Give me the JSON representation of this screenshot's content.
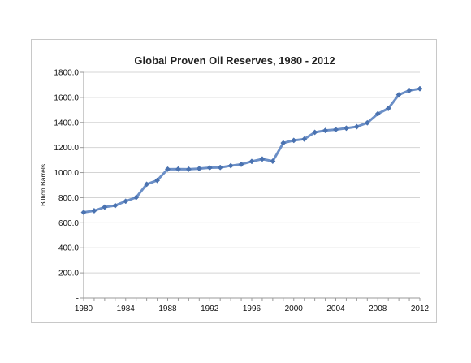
{
  "chart_data": {
    "type": "line",
    "title": "Global Proven Oil Reserves, 1980 - 2012",
    "xlabel": "",
    "ylabel": "Billion Barrels",
    "x": [
      1980,
      1981,
      1982,
      1983,
      1984,
      1985,
      1986,
      1987,
      1988,
      1989,
      1990,
      1991,
      1992,
      1993,
      1994,
      1995,
      1996,
      1997,
      1998,
      1999,
      2000,
      2001,
      2002,
      2003,
      2004,
      2005,
      2006,
      2007,
      2008,
      2009,
      2010,
      2011,
      2012
    ],
    "series": [
      {
        "values": [
          683,
          696,
          725,
          737,
          772,
          802,
          907,
          938,
          1027,
          1028,
          1027,
          1032,
          1039,
          1041,
          1055,
          1066,
          1089,
          1108,
          1091,
          1236,
          1257,
          1267,
          1321,
          1336,
          1343,
          1354,
          1366,
          1397,
          1469,
          1512,
          1621,
          1655,
          1669
        ],
        "color": "#6b8fc7",
        "marker_color": "#4a72b0"
      }
    ],
    "xlim": [
      1980,
      2012
    ],
    "ylim": [
      0,
      1800
    ],
    "yticks": [
      0,
      200,
      400,
      600,
      800,
      1000,
      1200,
      1400,
      1600,
      1800
    ],
    "ytick_labels": [
      "-",
      "200.0",
      "400.0",
      "600.0",
      "800.0",
      "1000.0",
      "1200.0",
      "1400.0",
      "1600.0",
      "1800.0"
    ],
    "xticks": [
      1980,
      1984,
      1988,
      1992,
      1996,
      2000,
      2004,
      2008,
      2012
    ],
    "xtick_labels": [
      "1980",
      "1984",
      "1988",
      "1992",
      "1996",
      "2000",
      "2004",
      "2008",
      "2012"
    ],
    "grid": true,
    "grid_color": "#d4d4d4",
    "legend": "none"
  }
}
